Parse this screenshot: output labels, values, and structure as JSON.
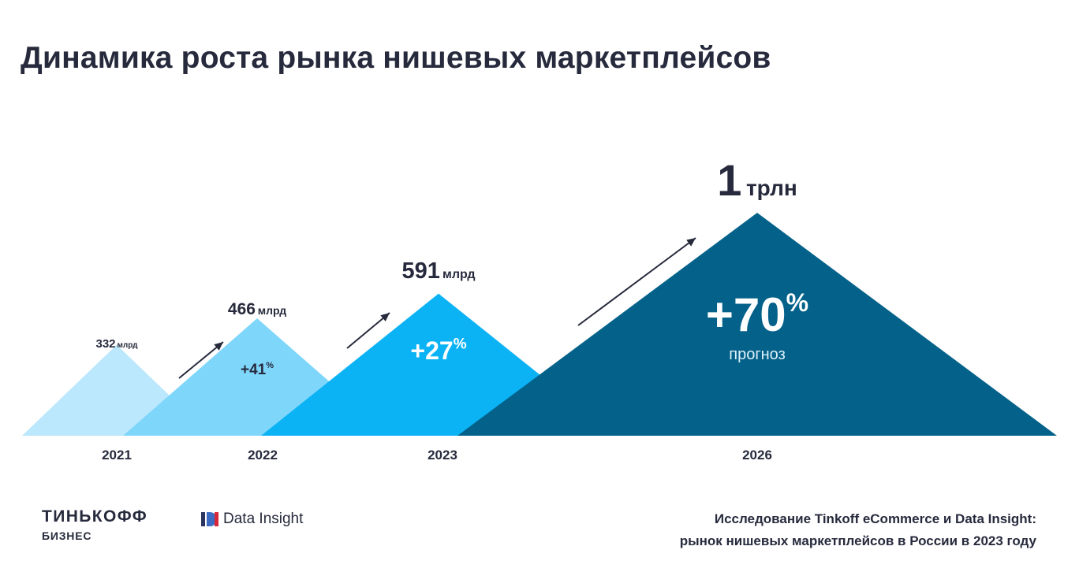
{
  "title": "Динамика роста рынка нишевых маркетплейсов",
  "colors": {
    "c2021": "#bbe8fc",
    "c2022": "#7fd6fb",
    "c2023": "#0bb3f5",
    "c2026": "#04628a",
    "text": "#262a3c"
  },
  "chart_data": {
    "type": "area",
    "categories": [
      "2021",
      "2022",
      "2023",
      "2026"
    ],
    "values": [
      332,
      466,
      591,
      1000
    ],
    "value_labels": [
      {
        "num": "332",
        "unit": "млрд"
      },
      {
        "num": "466",
        "unit": "млрд"
      },
      {
        "num": "591",
        "unit": "млрд"
      },
      {
        "num": "1",
        "unit": "трлн"
      }
    ],
    "growth_labels": [
      {
        "num": "+41",
        "sup": "%",
        "note": ""
      },
      {
        "num": "+27",
        "sup": "%",
        "note": ""
      },
      {
        "num": "+70",
        "sup": "%",
        "note": "прогноз"
      }
    ],
    "unit": "млрд",
    "ylim": [
      0,
      1000
    ],
    "grid": false,
    "legend": "none"
  },
  "footer": {
    "brand_line1": "ТИНЬКОФФ",
    "brand_line2": "БИЗНЕС",
    "partner": "Data Insight",
    "source_line1": "Исследование Tinkoff eCommerce и Data Insight:",
    "source_line2": "рынок нишевых маркетплейсов в России в 2023 году"
  }
}
